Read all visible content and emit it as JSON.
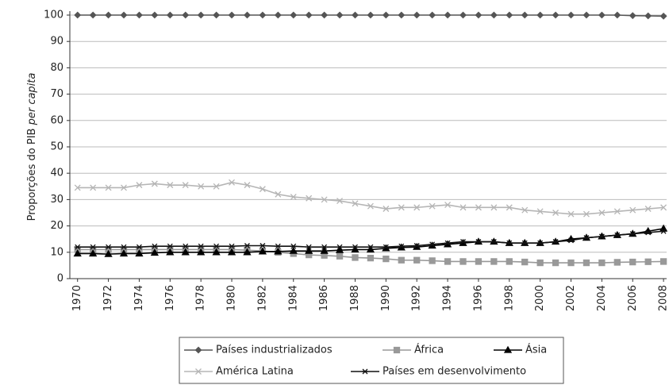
{
  "chart_data": {
    "type": "line",
    "ylabel": "Proporções do PIB",
    "ylabel_italic": "per capita",
    "x": [
      1970,
      1971,
      1972,
      1973,
      1974,
      1975,
      1976,
      1977,
      1978,
      1979,
      1980,
      1981,
      1982,
      1983,
      1984,
      1985,
      1986,
      1987,
      1988,
      1989,
      1990,
      1991,
      1992,
      1993,
      1994,
      1995,
      1996,
      1997,
      1998,
      1999,
      2000,
      2001,
      2002,
      2003,
      2004,
      2005,
      2006,
      2007,
      2008
    ],
    "xlim": [
      1969.5,
      2008.2
    ],
    "xticks": [
      1970,
      1972,
      1974,
      1976,
      1978,
      1980,
      1982,
      1984,
      1986,
      1988,
      1990,
      1992,
      1994,
      1996,
      1998,
      2000,
      2002,
      2004,
      2006,
      2008
    ],
    "ylim": [
      0,
      100
    ],
    "yticks": [
      0,
      10,
      20,
      30,
      40,
      50,
      60,
      70,
      80,
      90,
      100
    ],
    "grid": true,
    "series": [
      {
        "name": "Países industrializados",
        "color": "#555555",
        "marker": "diamond",
        "values": [
          100,
          100,
          100,
          100,
          100,
          100,
          100,
          100,
          100,
          100,
          100,
          100,
          100,
          100,
          100,
          100,
          100,
          100,
          100,
          100,
          100,
          100,
          100,
          100,
          100,
          100,
          100,
          100,
          100,
          100,
          100,
          100,
          100,
          100,
          100,
          100,
          99.8,
          99.7,
          99.6
        ]
      },
      {
        "name": "África",
        "color": "#999999",
        "marker": "square",
        "values": [
          11,
          11,
          11,
          11,
          11,
          11,
          11,
          11,
          11,
          11,
          11,
          10.8,
          10.5,
          10,
          9.5,
          9,
          8.8,
          8.5,
          8,
          7.8,
          7.5,
          7,
          7,
          6.8,
          6.5,
          6.5,
          6.5,
          6.5,
          6.5,
          6.3,
          6,
          6,
          6,
          6,
          6,
          6.2,
          6.3,
          6.4,
          6.5
        ]
      },
      {
        "name": "Ásia",
        "color": "#000000",
        "marker": "triangle",
        "values": [
          9.5,
          9.5,
          9.3,
          9.5,
          9.5,
          9.8,
          10,
          10,
          10,
          10,
          10,
          10,
          10.3,
          10.3,
          10.5,
          10.5,
          10.5,
          10.8,
          11,
          11,
          11.5,
          11.8,
          12,
          12.5,
          13,
          13.5,
          14,
          14,
          13.5,
          13.5,
          13.5,
          14,
          15,
          15.5,
          16,
          16.5,
          17,
          18,
          19
        ]
      },
      {
        "name": "América Latina",
        "color": "#b5b5b5",
        "marker": "x",
        "values": [
          34.5,
          34.5,
          34.5,
          34.5,
          35.5,
          36,
          35.5,
          35.5,
          35,
          35,
          36.5,
          35.5,
          34,
          32,
          31,
          30.5,
          30,
          29.5,
          28.5,
          27.5,
          26.5,
          27,
          27,
          27.5,
          28,
          27,
          27,
          27,
          27,
          26,
          25.5,
          25,
          24.5,
          24.5,
          25,
          25.5,
          26,
          26.5,
          27
        ]
      },
      {
        "name": "Países em desenvolvimento",
        "color": "#111111",
        "marker": "asterisk",
        "values": [
          12,
          12,
          12,
          12,
          12,
          12.3,
          12.3,
          12.3,
          12.3,
          12.3,
          12.3,
          12.5,
          12.5,
          12.3,
          12.3,
          12,
          12,
          12,
          12,
          12,
          12,
          12.3,
          12.5,
          13,
          13.5,
          14,
          14,
          14,
          13.5,
          13.5,
          13.5,
          14,
          14.5,
          15.5,
          16,
          16.5,
          17,
          17.5,
          18
        ]
      }
    ],
    "legend": "bottom"
  }
}
